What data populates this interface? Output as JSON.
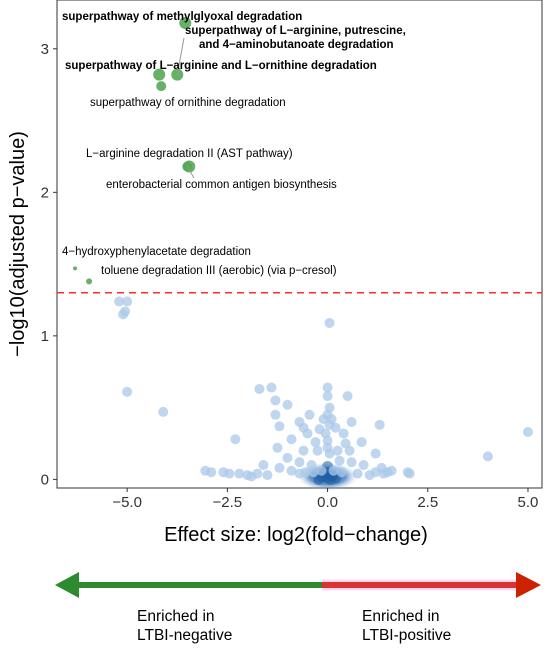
{
  "chart_data": {
    "type": "scatter",
    "xlabel": "Effect size: log2(fold−change)",
    "ylabel": "−log10(adjusted p−value)",
    "xlim": [
      -6.75,
      5.35
    ],
    "ylim": [
      -0.06,
      3.34
    ],
    "x_ticks": [
      -5.0,
      -2.5,
      0.0,
      2.5,
      5.0
    ],
    "x_tick_labels": [
      "−5.0",
      "−2.5",
      "0.0",
      "2.5",
      "5.0"
    ],
    "y_ticks": [
      0,
      1,
      2,
      3
    ],
    "y_tick_labels": [
      "0",
      "1",
      "2",
      "3"
    ],
    "threshold": {
      "y": 1.3,
      "color": "#ff2a2a",
      "style": "dashed"
    },
    "significant_points": [
      {
        "x": -3.55,
        "y": 3.18,
        "label": "superpathway of methylglyoxal degradation",
        "bold": true
      },
      {
        "x": -3.75,
        "y": 2.82,
        "label": "superpathway of L−arginine, putrescine,|and 4−aminobutanoate degradation",
        "bold": true
      },
      {
        "x": -4.2,
        "y": 2.82,
        "label": "superpathway of L−arginine and L−ornithine degradation",
        "bold": true
      },
      {
        "x": -4.15,
        "y": 2.74,
        "label": "superpathway of ornithine degradation",
        "bold": false
      },
      {
        "x": -3.45,
        "y": 2.18,
        "label": "L−arginine degradation II (AST pathway)",
        "bold": false
      },
      {
        "x": -3.5,
        "y": 2.18,
        "label": "enterobacterial common antigen biosynthesis",
        "bold": false
      },
      {
        "x": -6.3,
        "y": 1.47,
        "label": "4−hydroxyphenylacetate degradation",
        "bold": false
      },
      {
        "x": -5.95,
        "y": 1.38,
        "label": "toluene degradation III (aerobic) (via p−cresol)",
        "bold": false
      }
    ],
    "nonsignificant_points": [
      [
        -5.2,
        1.24
      ],
      [
        -5.0,
        1.24
      ],
      [
        -5.05,
        1.17
      ],
      [
        -5.1,
        1.15
      ],
      [
        0.05,
        1.09
      ],
      [
        -5.0,
        0.61
      ],
      [
        -4.1,
        0.47
      ],
      [
        -2.3,
        0.28
      ],
      [
        4.0,
        0.16
      ],
      [
        5.0,
        0.33
      ],
      [
        -3.05,
        0.06
      ],
      [
        -2.9,
        0.05
      ],
      [
        -2.2,
        0.04
      ],
      [
        -1.75,
        0.04
      ],
      [
        -1.5,
        0.03
      ],
      [
        -1.7,
        0.63
      ],
      [
        -1.4,
        0.64
      ],
      [
        -1.3,
        0.45
      ],
      [
        -1.3,
        0.55
      ],
      [
        -1.0,
        0.52
      ],
      [
        -1.2,
        0.37
      ],
      [
        -0.9,
        0.28
      ],
      [
        -0.7,
        0.4
      ],
      [
        -0.6,
        0.36
      ],
      [
        -0.5,
        0.32
      ],
      [
        -0.3,
        0.26
      ],
      [
        -0.2,
        0.35
      ],
      [
        -0.1,
        0.42
      ],
      [
        0.1,
        0.42
      ],
      [
        0.2,
        0.36
      ],
      [
        0.4,
        0.32
      ],
      [
        0.5,
        0.58
      ],
      [
        0.6,
        0.4
      ],
      [
        1.3,
        0.38
      ],
      [
        1.2,
        0.18
      ],
      [
        1.35,
        0.08
      ],
      [
        1.6,
        0.06
      ],
      [
        2.0,
        0.05
      ],
      [
        0.0,
        0.64
      ],
      [
        0.0,
        0.58
      ],
      [
        0.05,
        0.5
      ],
      [
        0.0,
        0.45
      ],
      [
        0.05,
        0.38
      ],
      [
        -0.05,
        0.32
      ],
      [
        0.0,
        0.27
      ],
      [
        0.0,
        0.22
      ],
      [
        0.05,
        0.18
      ],
      [
        -1.0,
        0.15
      ],
      [
        -0.7,
        0.12
      ],
      [
        -0.4,
        0.1
      ],
      [
        0.3,
        0.13
      ],
      [
        0.6,
        0.12
      ],
      [
        0.9,
        0.1
      ],
      [
        -1.9,
        0.02
      ],
      [
        -0.7,
        0.04
      ],
      [
        -0.55,
        0.05
      ],
      [
        0.75,
        0.04
      ],
      [
        1.05,
        0.03
      ],
      [
        1.4,
        0.04
      ],
      [
        0.55,
        0.2
      ],
      [
        -0.25,
        0.2
      ],
      [
        0.25,
        0.2
      ],
      [
        -0.6,
        0.2
      ],
      [
        -1.2,
        0.08
      ],
      [
        -0.9,
        0.06
      ],
      [
        0.15,
        0.06
      ],
      [
        -0.15,
        0.06
      ],
      [
        0.35,
        0.05
      ],
      [
        -0.35,
        0.05
      ],
      [
        1.2,
        0.05
      ],
      [
        1.5,
        0.05
      ],
      [
        2.05,
        0.04
      ],
      [
        -2.6,
        0.05
      ],
      [
        -2.45,
        0.04
      ],
      [
        -2.0,
        0.03
      ],
      [
        -1.25,
        0.22
      ],
      [
        -1.6,
        0.1
      ],
      [
        0.85,
        0.26
      ],
      [
        0.45,
        0.25
      ],
      [
        -0.45,
        0.45
      ]
    ],
    "colors": {
      "significant": "#55a955",
      "nonsignificant": "#a9c8e8",
      "dense": "#1f5fa6"
    },
    "grid": false,
    "annotation_lines": [
      "superpathway of methylglyoxal degradation",
      "superpathway of L−arginine, putrescine,",
      "and 4−aminobutanoate degradation",
      "superpathway of L−arginine and L−ornithine degradation",
      "superpathway of ornithine degradation",
      "L−arginine degradation II (AST pathway)",
      "enterobacterial common antigen biosynthesis",
      "4−hydroxyphenylacetate degradation",
      "toluene degradation III (aerobic) (via p−cresol)"
    ]
  },
  "legend_arrow": {
    "left_color": "#2e8a2e",
    "right_color": "#cc2200",
    "left_label_line1": "Enriched in",
    "left_label_line2": "LTBI-negative",
    "right_label_line1": "Enriched in",
    "right_label_line2": "LTBI-positive"
  }
}
